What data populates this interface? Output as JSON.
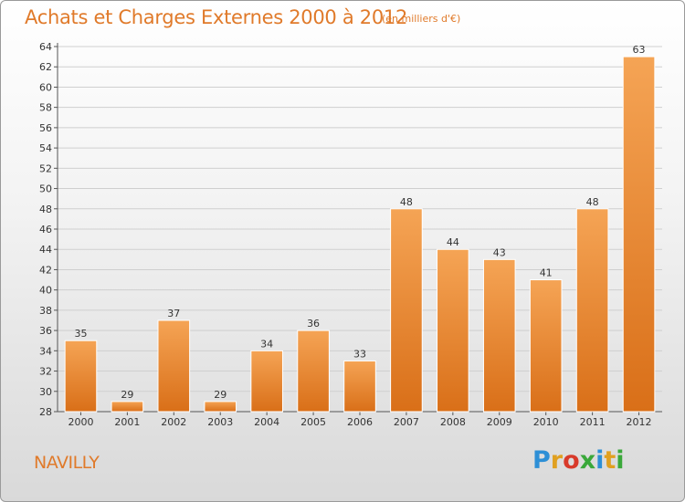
{
  "header": {
    "title": "Achats et Charges Externes 2000 à 2012",
    "subtitle": "(en milliers d'€)"
  },
  "footer": {
    "commune": "NAVILLY",
    "logo_letters": [
      {
        "ch": "P",
        "color": "#2d8fd6"
      },
      {
        "ch": "r",
        "color": "#e0a020"
      },
      {
        "ch": "o",
        "color": "#d83a2a"
      },
      {
        "ch": "x",
        "color": "#3aa83a"
      },
      {
        "ch": "i",
        "color": "#2d8fd6"
      },
      {
        "ch": "t",
        "color": "#e0a020"
      },
      {
        "ch": "i",
        "color": "#3aa83a"
      }
    ]
  },
  "chart_data": {
    "type": "bar",
    "title": "Achats et Charges Externes 2000 à 2012",
    "subtitle": "(en milliers d'€)",
    "categories": [
      "2000",
      "2001",
      "2002",
      "2003",
      "2004",
      "2005",
      "2006",
      "2007",
      "2008",
      "2009",
      "2010",
      "2011",
      "2012"
    ],
    "values": [
      35,
      29,
      37,
      29,
      34,
      36,
      33,
      48,
      44,
      43,
      41,
      48,
      63
    ],
    "ylim": [
      28,
      64
    ],
    "yticks": [
      28,
      30,
      32,
      34,
      36,
      38,
      40,
      42,
      44,
      46,
      48,
      50,
      52,
      54,
      56,
      58,
      60,
      62,
      64
    ],
    "grid": true,
    "bar_color_light": "#f5a455",
    "bar_color_dark": "#d96f18"
  }
}
